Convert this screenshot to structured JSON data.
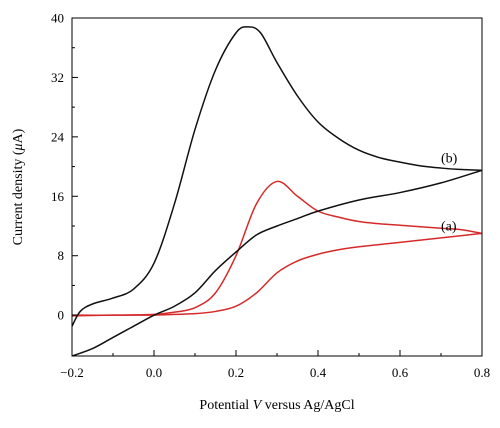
{
  "chart_data": {
    "type": "line",
    "title": "",
    "xlabel": "Potential V versus Ag/AgCl",
    "ylabel": "Current density (μA)",
    "xlabel_parts": {
      "before": "Potential ",
      "italic": "V",
      "after": " versus Ag/AgCl"
    },
    "ylabel_parts": {
      "before": "Current density (",
      "italic": "μ",
      "after": "A)"
    },
    "xlim": [
      -0.2,
      0.8
    ],
    "ylim": [
      -5.5,
      40
    ],
    "x_ticks": [
      -0.2,
      0.0,
      0.2,
      0.4,
      0.6,
      0.8
    ],
    "x_tick_labels": [
      "−0.2",
      "0.0",
      "0.2",
      "0.4",
      "0.6",
      "0.8"
    ],
    "y_ticks": [
      0,
      8,
      16,
      24,
      32,
      40
    ],
    "y_tick_labels": [
      "0",
      "8",
      "16",
      "24",
      "32",
      "40"
    ],
    "grid": false,
    "series": [
      {
        "name": "(a)",
        "color": "#d62a2a",
        "forward": {
          "x": [
            -0.2,
            -0.1,
            0.0,
            0.05,
            0.1,
            0.15,
            0.2,
            0.25,
            0.3,
            0.35,
            0.4,
            0.45,
            0.5,
            0.55,
            0.6,
            0.65,
            0.7,
            0.75,
            0.8
          ],
          "y": [
            0,
            0,
            0.1,
            0.4,
            1.0,
            3.0,
            8.0,
            15.0,
            18.0,
            16.0,
            14.0,
            13.2,
            12.6,
            12.3,
            12.1,
            11.9,
            11.7,
            11.5,
            11.0
          ]
        },
        "reverse": {
          "x": [
            0.8,
            0.7,
            0.6,
            0.5,
            0.45,
            0.4,
            0.35,
            0.3,
            0.25,
            0.2,
            0.15,
            0.1,
            0.05,
            0.0,
            -0.1,
            -0.2
          ],
          "y": [
            11.0,
            10.4,
            9.8,
            9.2,
            8.8,
            8.2,
            7.3,
            5.7,
            3.0,
            1.2,
            0.5,
            0.2,
            0.1,
            0,
            0,
            -0.1
          ]
        }
      },
      {
        "name": "(b)",
        "color": "#111111",
        "forward": {
          "x": [
            -0.2,
            -0.18,
            -0.15,
            -0.1,
            -0.05,
            0.0,
            0.05,
            0.1,
            0.15,
            0.2,
            0.23,
            0.26,
            0.3,
            0.35,
            0.4,
            0.45,
            0.5,
            0.55,
            0.6,
            0.65,
            0.7,
            0.75,
            0.8
          ],
          "y": [
            -1.5,
            0.5,
            1.5,
            2.3,
            3.5,
            7.0,
            15.0,
            25.0,
            33.0,
            38.0,
            38.8,
            38.0,
            34.0,
            29.5,
            26.0,
            23.8,
            22.2,
            21.2,
            20.6,
            20.1,
            19.8,
            19.6,
            19.5
          ]
        },
        "reverse": {
          "x": [
            0.8,
            0.7,
            0.6,
            0.5,
            0.4,
            0.35,
            0.3,
            0.25,
            0.2,
            0.15,
            0.1,
            0.05,
            0.0,
            -0.05,
            -0.1,
            -0.15,
            -0.2
          ],
          "y": [
            19.5,
            17.8,
            16.5,
            15.5,
            14.0,
            13.0,
            12.0,
            10.8,
            8.5,
            6.0,
            3.0,
            1.2,
            0.0,
            -1.5,
            -3.0,
            -4.5,
            -5.5
          ]
        }
      }
    ]
  }
}
